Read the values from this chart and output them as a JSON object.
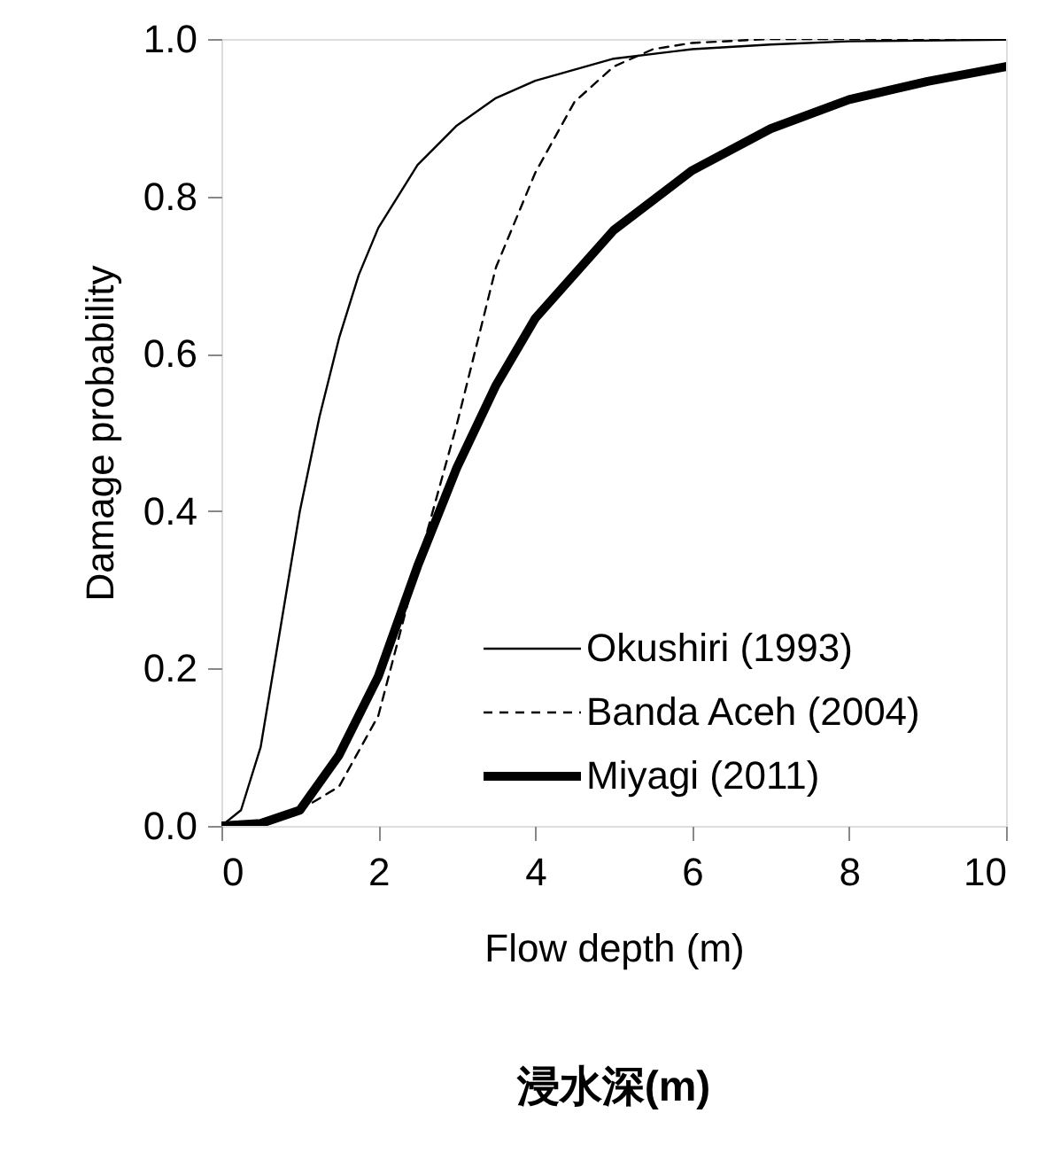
{
  "chart_data": {
    "type": "line",
    "xlabel": "Flow depth (m)",
    "ylabel": "Damage probability",
    "annotations": [
      "浸水深(m)"
    ],
    "xlim": [
      0,
      10
    ],
    "xticks": [
      0,
      2,
      4,
      6,
      8,
      10
    ],
    "ylim": [
      0,
      1.0
    ],
    "yticks": [
      {
        "value": 0,
        "label": "0.0"
      },
      {
        "value": 0.2,
        "label": "0.2"
      },
      {
        "value": 0.4,
        "label": "0.4"
      },
      {
        "value": 0.6,
        "label": "0.6"
      },
      {
        "value": 0.8,
        "label": "0.8"
      },
      {
        "value": 1.0,
        "label": "1.0"
      }
    ],
    "grid": false,
    "legend": "bottom right",
    "marker": "none",
    "series": [
      {
        "name": "Okushiri (1993)",
        "color": "#000000",
        "line_style": "solid",
        "x": [
          0,
          0.25,
          0.5,
          0.75,
          1,
          1.25,
          1.5,
          1.75,
          2,
          2.5,
          3,
          3.5,
          4,
          5,
          6,
          7,
          8,
          10
        ],
        "values": [
          0,
          0.02,
          0.1,
          0.25,
          0.4,
          0.52,
          0.62,
          0.7,
          0.76,
          0.84,
          0.89,
          0.925,
          0.947,
          0.975,
          0.987,
          0.993,
          0.997,
          0.999
        ]
      },
      {
        "name": "Banda Aceh (2004)",
        "color": "#000000",
        "line_style": "dashed",
        "x": [
          0,
          0.5,
          1,
          1.5,
          2,
          2.5,
          3,
          3.5,
          4,
          4.5,
          5,
          5.5,
          6,
          7,
          10
        ],
        "values": [
          0,
          0.003,
          0.02,
          0.05,
          0.14,
          0.33,
          0.51,
          0.71,
          0.83,
          0.92,
          0.965,
          0.987,
          0.995,
          1.0,
          1.0
        ]
      },
      {
        "name": "Miyagi (2011)",
        "color": "#000000",
        "line_style": "solid",
        "x": [
          0,
          0.5,
          1,
          1.5,
          2,
          2.5,
          3,
          3.5,
          4,
          5,
          6,
          7,
          8,
          9,
          10
        ],
        "values": [
          0,
          0.003,
          0.02,
          0.09,
          0.19,
          0.33,
          0.455,
          0.56,
          0.645,
          0.757,
          0.833,
          0.886,
          0.923,
          0.946,
          0.965
        ]
      }
    ]
  }
}
